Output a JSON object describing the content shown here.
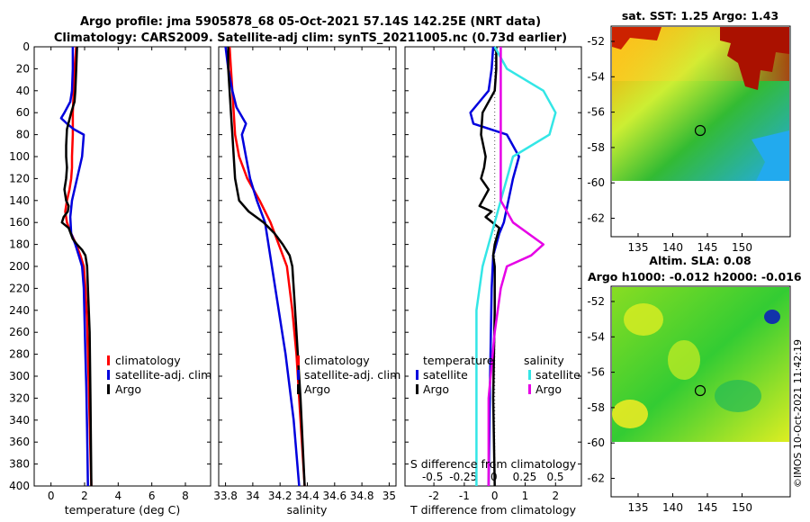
{
  "title": {
    "line1": "Argo profile: jma 5905878_68 05-Oct-2021 57.14S 142.25E (NRT data)",
    "line2": "Climatology: CARS2009. Satellite-adj clim: synTS_20211005.nc (0.73d earlier)"
  },
  "copyright": "©IMOS 10-Oct-2021 11:42:19",
  "colors": {
    "red": "#ff0000",
    "blue": "#0000dd",
    "black": "#000000",
    "cyan": "#33e6e6",
    "magenta": "#e600e6"
  },
  "chart_data": [
    {
      "type": "line",
      "id": "temperature",
      "xlabel": "temperature (deg C)",
      "ylabel": "depth",
      "xlim": [
        -1,
        9.5
      ],
      "ylim": [
        400,
        0
      ],
      "xticks": [
        "0",
        "2",
        "4",
        "6",
        "8"
      ],
      "xtick_values": [
        0,
        2,
        4,
        6,
        8
      ],
      "yticks": [
        "0",
        "20",
        "40",
        "60",
        "80",
        "100",
        "120",
        "140",
        "160",
        "180",
        "200",
        "220",
        "240",
        "260",
        "280",
        "300",
        "320",
        "340",
        "360",
        "380",
        "400"
      ],
      "legend": [
        "climatology",
        "satellite-adj. clim",
        "Argo"
      ],
      "series": [
        {
          "name": "climatology",
          "color": "red",
          "x": [
            1.5,
            1.4,
            1.35,
            1.3,
            1.3,
            1.25,
            1.25,
            1.2,
            1.1,
            0.95,
            0.85,
            0.95,
            1.2,
            1.5,
            1.75,
            1.95,
            2.05,
            2.15,
            2.2,
            2.25,
            2.3,
            2.35,
            2.4
          ],
          "y": [
            0,
            20,
            40,
            60,
            80,
            100,
            110,
            120,
            130,
            140,
            150,
            160,
            170,
            180,
            190,
            200,
            220,
            250,
            280,
            310,
            340,
            370,
            400
          ]
        },
        {
          "name": "satellite-adj. clim",
          "color": "blue",
          "x": [
            1.3,
            1.3,
            1.25,
            1.15,
            0.8,
            0.6,
            0.95,
            1.35,
            1.95,
            1.85,
            1.55,
            1.25,
            1.15,
            1.2,
            1.45,
            1.65,
            1.85,
            1.95,
            2.0,
            2.05,
            2.1,
            2.15,
            2.2
          ],
          "y": [
            0,
            20,
            40,
            50,
            60,
            65,
            70,
            75,
            80,
            100,
            120,
            140,
            155,
            170,
            180,
            190,
            200,
            220,
            250,
            280,
            310,
            350,
            400
          ]
        },
        {
          "name": "Argo",
          "color": "black",
          "x": [
            1.55,
            1.5,
            1.45,
            1.4,
            1.2,
            0.95,
            0.9,
            0.9,
            0.95,
            0.9,
            0.8,
            0.9,
            1.05,
            1.0,
            0.75,
            0.65,
            1.05,
            1.3,
            1.55,
            1.85,
            2.05,
            2.15,
            2.2,
            2.3,
            2.35,
            2.4
          ],
          "y": [
            0,
            20,
            40,
            50,
            60,
            75,
            90,
            100,
            110,
            120,
            130,
            140,
            145,
            150,
            155,
            160,
            165,
            175,
            180,
            185,
            190,
            200,
            220,
            260,
            320,
            400
          ]
        }
      ]
    },
    {
      "type": "line",
      "id": "salinity",
      "xlabel": "salinity",
      "ylabel": "depth",
      "xlim": [
        33.75,
        35.05
      ],
      "ylim": [
        400,
        0
      ],
      "xticks": [
        "33.8",
        "34",
        "34.2",
        "34.4",
        "34.6",
        "34.8",
        "35"
      ],
      "xtick_values": [
        33.8,
        34.0,
        34.2,
        34.4,
        34.6,
        34.8,
        35.0
      ],
      "legend": [
        "climatology",
        "satellite-adj. clim",
        "Argo"
      ],
      "series": [
        {
          "name": "climatology",
          "color": "red",
          "x": [
            33.83,
            33.84,
            33.85,
            33.86,
            33.87,
            33.9,
            33.96,
            34.05,
            34.13,
            34.19,
            34.25,
            34.29,
            34.32,
            34.35,
            34.38
          ],
          "y": [
            0,
            20,
            40,
            60,
            80,
            100,
            120,
            140,
            160,
            180,
            200,
            240,
            280,
            340,
            400
          ]
        },
        {
          "name": "satellite-adj. clim",
          "color": "blue",
          "x": [
            33.8,
            33.82,
            33.85,
            33.88,
            33.95,
            33.92,
            33.95,
            33.98,
            34.03,
            34.09,
            34.14,
            34.19,
            34.24,
            34.3,
            34.34
          ],
          "y": [
            0,
            20,
            40,
            55,
            70,
            80,
            100,
            120,
            140,
            160,
            200,
            240,
            280,
            340,
            400
          ]
        },
        {
          "name": "Argo",
          "color": "black",
          "x": [
            33.82,
            33.82,
            33.83,
            33.84,
            33.85,
            33.86,
            33.87,
            33.9,
            33.97,
            34.08,
            34.16,
            34.22,
            34.27,
            34.29,
            34.31,
            34.35,
            34.38
          ],
          "y": [
            0,
            20,
            40,
            60,
            80,
            100,
            120,
            140,
            150,
            160,
            170,
            180,
            190,
            200,
            240,
            320,
            400
          ]
        }
      ]
    },
    {
      "type": "line",
      "id": "difference",
      "xlabel": "T difference from climatology",
      "xlabel_top": "S difference from climatology",
      "ylabel": "depth",
      "xlim": [
        -2.95,
        2.85
      ],
      "ylim": [
        400,
        0
      ],
      "xticks": [
        "-2",
        "-1",
        "0",
        "1",
        "2"
      ],
      "xtick_values": [
        -2,
        -1,
        0,
        1,
        2
      ],
      "xticks_top": [
        "-0.5",
        "-0.25",
        "0",
        "0.25",
        "0.5"
      ],
      "legend_titles": [
        "temperature",
        "salinity"
      ],
      "legend": [
        "satellite",
        "Argo",
        "satellite",
        "Argo"
      ],
      "series": [
        {
          "name": "temperature satellite",
          "color": "blue",
          "x": [
            -0.05,
            -0.1,
            -0.2,
            -0.5,
            -0.8,
            -0.7,
            0.4,
            0.8,
            0.6,
            0.45,
            0.3,
            0.15,
            0.05,
            -0.05,
            -0.1,
            -0.15,
            -0.2
          ],
          "y": [
            0,
            20,
            40,
            50,
            60,
            70,
            80,
            100,
            120,
            140,
            160,
            170,
            180,
            190,
            220,
            300,
            400
          ]
        },
        {
          "name": "temperature Argo",
          "color": "black",
          "x": [
            0.05,
            0.05,
            0.0,
            -0.4,
            -0.45,
            -0.3,
            -0.35,
            -0.45,
            -0.2,
            -0.4,
            -0.5,
            -0.1,
            -0.3,
            0.15,
            0.0,
            -0.05,
            0.0,
            0.0,
            -0.05,
            0.0
          ],
          "y": [
            0,
            20,
            40,
            60,
            80,
            100,
            110,
            120,
            130,
            140,
            145,
            150,
            155,
            165,
            180,
            190,
            200,
            240,
            320,
            400
          ]
        },
        {
          "name": "salinity satellite",
          "color": "cyan",
          "x": [
            0.0,
            0.1,
            0.4,
            0.5,
            0.45,
            0.15,
            0.1,
            0.05,
            0.0,
            -0.05,
            -0.1,
            -0.15,
            -0.15,
            -0.15,
            -0.15
          ],
          "y": [
            0,
            20,
            40,
            60,
            80,
            100,
            120,
            140,
            160,
            180,
            200,
            240,
            300,
            350,
            400
          ]
        },
        {
          "name": "salinity Argo",
          "color": "magenta",
          "x": [
            0.05,
            0.05,
            0.05,
            0.05,
            0.05,
            0.05,
            0.05,
            0.05,
            0.15,
            0.4,
            0.3,
            0.1,
            0.05,
            0.0,
            -0.05,
            -0.05
          ],
          "y": [
            0,
            20,
            40,
            60,
            80,
            100,
            120,
            140,
            160,
            180,
            190,
            200,
            220,
            260,
            320,
            400
          ]
        }
      ]
    }
  ],
  "maps": [
    {
      "id": "sst",
      "title": "sat. SST: 1.25 Argo: 1.43",
      "yticks": [
        "-52",
        "-54",
        "-56",
        "-58",
        "-60",
        "-62"
      ],
      "xticks": [
        "135",
        "140",
        "145",
        "150"
      ]
    },
    {
      "id": "sla",
      "title_line1": "Altim. SLA: 0.08",
      "title_line2": "Argo h1000: -0.012 h2000: -0.016",
      "yticks": [
        "-52",
        "-54",
        "-56",
        "-58",
        "-60",
        "-62"
      ],
      "xticks": [
        "135",
        "140",
        "145",
        "150"
      ]
    }
  ]
}
